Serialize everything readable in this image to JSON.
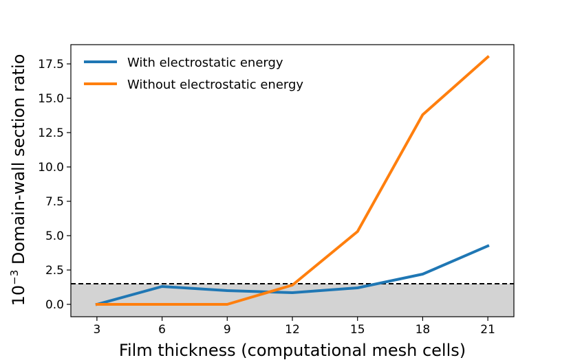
{
  "chart_data": {
    "type": "line",
    "title": "",
    "xlabel": "Film thickness (computational mesh cells)",
    "ylabel_prefix": "10",
    "ylabel_exponent": "−3",
    "ylabel_text": "Domain-wall section ratio",
    "x": [
      3,
      6,
      9,
      12,
      15,
      18,
      21
    ],
    "xticks": [
      "3",
      "6",
      "9",
      "12",
      "15",
      "18",
      "21"
    ],
    "yticks": [
      "0.0",
      "2.5",
      "5.0",
      "7.5",
      "10.0",
      "12.5",
      "15.0",
      "17.5"
    ],
    "ytick_values": [
      0,
      2.5,
      5,
      7.5,
      10,
      12.5,
      15,
      17.5
    ],
    "xlim": [
      1.8,
      22.2
    ],
    "ylim": [
      -0.9,
      18.9
    ],
    "threshold": 1.5,
    "shaded_region": [
      -0.9,
      1.5
    ],
    "series": [
      {
        "name": "With electrostatic energy",
        "color": "#1f77b4",
        "values": [
          0.0,
          1.3,
          1.0,
          0.85,
          1.2,
          2.2,
          4.25
        ]
      },
      {
        "name": "Without electrostatic energy",
        "color": "#ff7f0e",
        "values": [
          0.0,
          0.0,
          0.0,
          1.4,
          5.3,
          13.8,
          18.0
        ]
      }
    ],
    "legend_position": "top-left",
    "colors": {
      "shade": "#d3d3d3",
      "threshold_line": "#000000",
      "axis": "#000000"
    }
  }
}
